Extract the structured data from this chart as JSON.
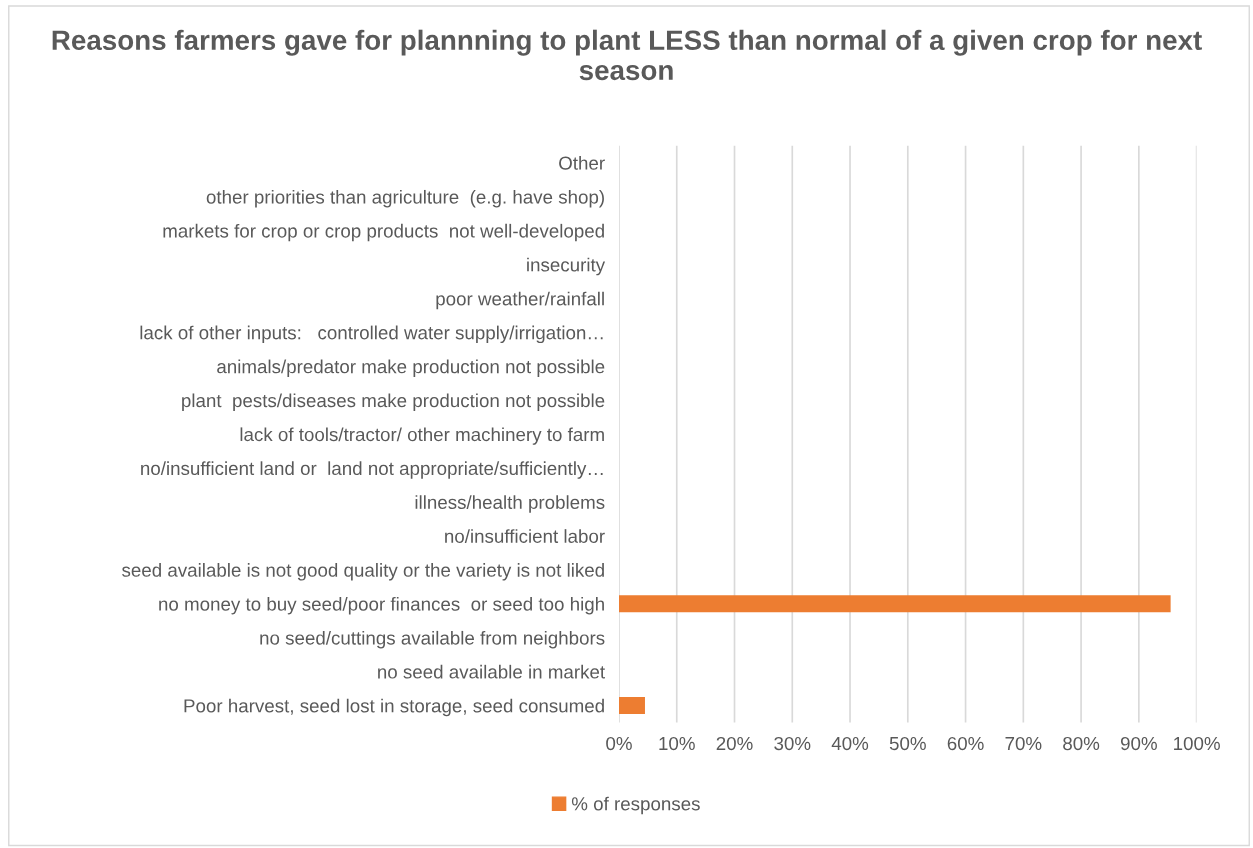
{
  "chart_data": {
    "type": "bar",
    "orientation": "horizontal",
    "title": "Reasons farmers gave for plannning to plant LESS than normal of a given crop for next season",
    "categories": [
      "Other",
      "other priorities than agriculture  (e.g. have shop)",
      "markets for crop or crop products  not well-developed",
      "insecurity",
      "poor weather/rainfall",
      "lack of other inputs:   controlled water supply/irrigation…",
      "animals/predator make production not possible",
      "plant  pests/diseases make production not possible",
      "lack of tools/tractor/ other machinery to farm",
      "no/insufficient land or  land not appropriate/sufficiently…",
      "illness/health problems",
      "no/insufficient labor",
      "seed available is not good quality or the variety is not liked",
      "no money to buy seed/poor finances  or seed too high",
      "no seed/cuttings available from neighbors",
      "no seed available in market",
      "Poor harvest, seed lost in storage, seed consumed"
    ],
    "series": [
      {
        "name": "% of responses",
        "color": "#ed7d31",
        "values": [
          0,
          0,
          0,
          0,
          0,
          0,
          0,
          0,
          0,
          0,
          0,
          0,
          0,
          95.5,
          0,
          0,
          4.5
        ]
      }
    ],
    "xlim": [
      0,
      100
    ],
    "xticks": [
      {
        "value": 0,
        "label": "0%"
      },
      {
        "value": 10,
        "label": "10%"
      },
      {
        "value": 20,
        "label": "20%"
      },
      {
        "value": 30,
        "label": "30%"
      },
      {
        "value": 40,
        "label": "40%"
      },
      {
        "value": 50,
        "label": "50%"
      },
      {
        "value": 60,
        "label": "60%"
      },
      {
        "value": 70,
        "label": "70%"
      },
      {
        "value": 80,
        "label": "80%"
      },
      {
        "value": 90,
        "label": "90%"
      },
      {
        "value": 100,
        "label": "100%"
      }
    ],
    "grid": "x",
    "legend": "bottom"
  }
}
